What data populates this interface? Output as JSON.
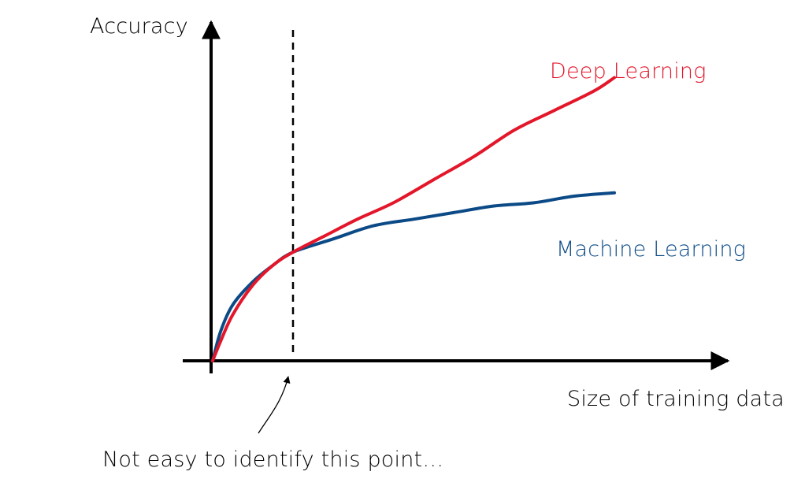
{
  "colors": {
    "deep_learning": "#e3162a",
    "machine_learning": "#0b4a86",
    "axis": "#000000",
    "divider": "#000000"
  },
  "chart_data": {
    "type": "line",
    "title": "",
    "xlabel": "Size of training data",
    "ylabel": "Accuracy",
    "xlim": [
      0,
      1
    ],
    "ylim": [
      0,
      1
    ],
    "grid": false,
    "series": [
      {
        "name": "Deep Learning",
        "color": "#e3162a",
        "x": [
          0,
          0.02,
          0.05,
          0.1,
          0.15,
          0.2,
          0.28,
          0.36,
          0.45,
          0.55,
          0.65,
          0.75,
          0.85,
          0.95,
          1.0
        ],
        "y": [
          0.0,
          0.06,
          0.14,
          0.23,
          0.29,
          0.33,
          0.38,
          0.43,
          0.48,
          0.55,
          0.62,
          0.7,
          0.76,
          0.82,
          0.86
        ]
      },
      {
        "name": "Machine Learning",
        "color": "#0b4a86",
        "x": [
          0,
          0.02,
          0.05,
          0.1,
          0.15,
          0.2,
          0.3,
          0.4,
          0.5,
          0.6,
          0.7,
          0.8,
          0.9,
          1.0
        ],
        "y": [
          0.0,
          0.09,
          0.17,
          0.24,
          0.29,
          0.33,
          0.37,
          0.41,
          0.43,
          0.45,
          0.47,
          0.48,
          0.5,
          0.51
        ]
      }
    ],
    "vertical_marker": {
      "x": 0.2
    },
    "annotation": "Not easy to identify this point…"
  }
}
